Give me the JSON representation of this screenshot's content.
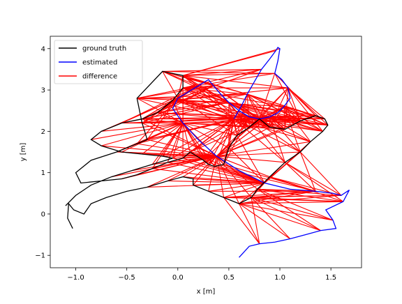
{
  "chart_data": {
    "type": "line",
    "title": "",
    "xlabel": "x [m]",
    "ylabel": "y [m]",
    "xlim": [
      -1.25,
      1.8
    ],
    "ylim": [
      -1.3,
      4.3
    ],
    "xticks": [
      "−1.0",
      "−0.5",
      "0.0",
      "0.5",
      "1.0",
      "1.5"
    ],
    "xtick_values": [
      -1.0,
      -0.5,
      0.0,
      0.5,
      1.0,
      1.5
    ],
    "yticks": [
      "−1",
      "0",
      "1",
      "2",
      "3",
      "4"
    ],
    "ytick_values": [
      -1,
      0,
      1,
      2,
      3,
      4
    ],
    "grid": false,
    "legend_position": "upper-left",
    "series": [
      {
        "name": "ground truth",
        "color": "#000000",
        "x": [
          -1.03,
          -1.08,
          -1.07,
          -1.02,
          -0.92,
          -0.85,
          -0.7,
          -0.5,
          -0.3,
          -0.1,
          0.05,
          0.15,
          0.15,
          0.3,
          0.45,
          0.6,
          0.72,
          0.78,
          0.9,
          1.05,
          1.2,
          1.3,
          1.42,
          1.47,
          1.44,
          1.35,
          1.2,
          1.05,
          0.9,
          0.8,
          0.7,
          0.58,
          0.5,
          0.45,
          0.36,
          0.3,
          0.25,
          0.12,
          0.05,
          -0.1,
          -0.25,
          -0.4,
          -0.55,
          -0.75,
          -0.95,
          -1.0,
          -0.85,
          -0.6,
          -0.4,
          -0.3,
          -0.35,
          -0.4,
          -0.15,
          0.05,
          0.05,
          -0.05,
          -0.2,
          -0.35,
          -0.55,
          -0.75,
          -0.85,
          -0.75,
          -0.55,
          -0.35,
          -0.15,
          -0.05,
          -0.25,
          -0.45,
          -0.65,
          -0.85,
          -1.0,
          -1.1
        ],
        "y": [
          -0.35,
          -0.1,
          0.25,
          0.1,
          0.0,
          0.25,
          0.4,
          0.55,
          0.65,
          0.8,
          0.9,
          0.85,
          0.7,
          0.55,
          0.4,
          0.25,
          0.4,
          0.6,
          0.9,
          1.25,
          1.5,
          1.75,
          2.0,
          2.15,
          2.3,
          2.38,
          2.25,
          2.05,
          2.1,
          2.3,
          2.1,
          1.9,
          1.6,
          1.2,
          1.15,
          1.2,
          1.3,
          1.5,
          1.35,
          1.25,
          1.1,
          0.95,
          0.85,
          0.8,
          0.75,
          1.0,
          1.3,
          1.5,
          1.7,
          1.8,
          2.2,
          2.8,
          3.45,
          3.35,
          3.05,
          2.75,
          2.45,
          2.3,
          2.2,
          2.0,
          1.8,
          1.65,
          1.5,
          1.45,
          1.4,
          1.35,
          1.2,
          1.05,
          0.9,
          0.7,
          0.45,
          0.2
        ]
      },
      {
        "name": "estimated",
        "color": "#0000ff",
        "x": [
          0.55,
          0.62,
          0.68,
          0.75,
          0.82,
          0.9,
          0.96,
          0.98,
          1.0,
          0.98,
          0.95,
          1.02,
          1.08,
          1.1,
          1.04,
          0.98,
          0.9,
          0.8,
          0.7,
          0.6,
          0.5,
          0.42,
          0.35,
          0.3,
          0.2,
          0.1,
          0.0,
          -0.05,
          0.05,
          0.2,
          0.38,
          0.6,
          0.85,
          1.1,
          1.35,
          1.52,
          1.6,
          1.68,
          1.62,
          1.45,
          1.52,
          1.55,
          1.4,
          1.25,
          1.1,
          0.95,
          0.8,
          0.7,
          0.6
        ],
        "y": [
          2.3,
          2.6,
          2.9,
          3.2,
          3.5,
          3.75,
          3.95,
          4.03,
          4.0,
          3.7,
          3.4,
          3.25,
          3.05,
          2.8,
          2.6,
          2.45,
          2.35,
          2.3,
          2.35,
          2.5,
          2.7,
          2.9,
          3.1,
          3.25,
          3.1,
          2.95,
          2.8,
          2.55,
          2.2,
          1.8,
          1.4,
          1.05,
          0.75,
          0.6,
          0.55,
          0.5,
          0.45,
          0.58,
          0.3,
          0.1,
          -0.15,
          -0.35,
          -0.4,
          -0.5,
          -0.6,
          -0.68,
          -0.72,
          -0.78,
          -1.05
        ]
      },
      {
        "name": "difference",
        "color": "#ff0000",
        "x": [],
        "y": []
      }
    ]
  }
}
